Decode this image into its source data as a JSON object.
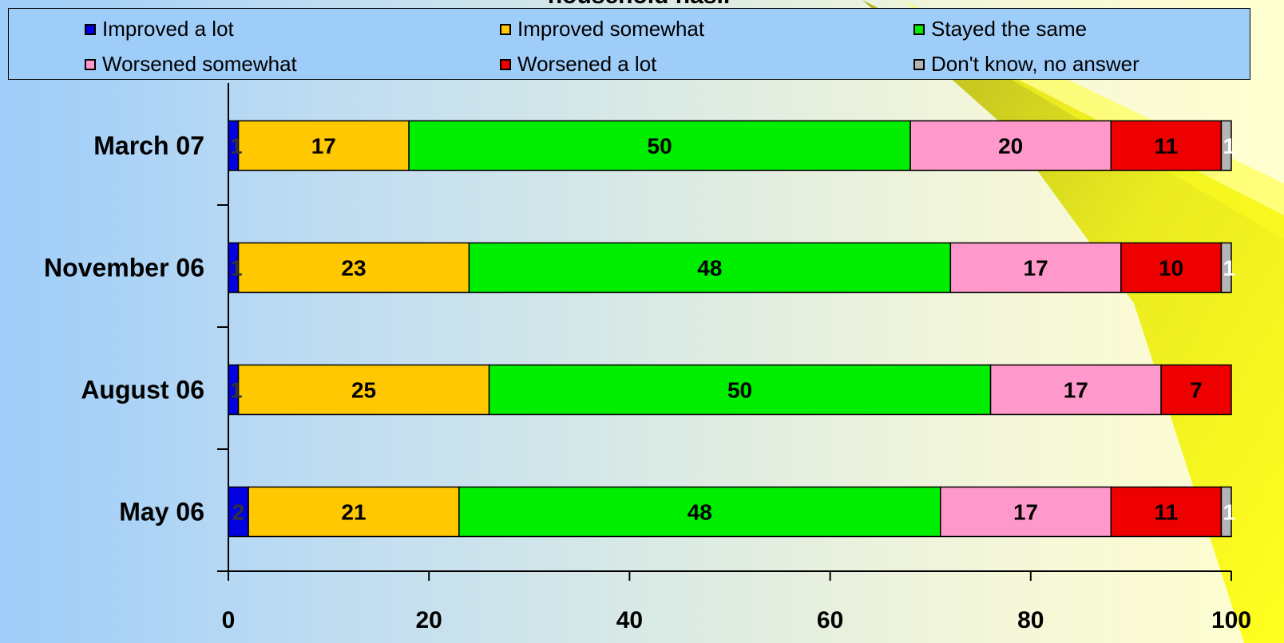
{
  "chart_data": {
    "type": "bar",
    "orientation": "horizontal",
    "stacked": true,
    "title": "household has..",
    "categories": [
      "March 07",
      "November 06",
      "August 06",
      "May 06"
    ],
    "series": [
      {
        "name": "Improved a lot",
        "color": "#0000e0",
        "values": [
          1,
          1,
          1,
          2
        ]
      },
      {
        "name": "Improved somewhat",
        "color": "#ffc800",
        "values": [
          17,
          23,
          25,
          21
        ]
      },
      {
        "name": "Stayed the same",
        "color": "#00ee00",
        "values": [
          50,
          48,
          50,
          48
        ]
      },
      {
        "name": "Worsened somewhat",
        "color": "#ff99cc",
        "values": [
          20,
          17,
          17,
          17
        ]
      },
      {
        "name": "Worsened a lot",
        "color": "#ee0000",
        "values": [
          11,
          10,
          7,
          11
        ]
      },
      {
        "name": "Don't know, no answer",
        "color": "#b4b4b4",
        "values": [
          1,
          1,
          null,
          1
        ]
      }
    ],
    "xlim": [
      0,
      100
    ],
    "x_ticks": [
      "0",
      "20",
      "40",
      "60",
      "80",
      "100"
    ],
    "legend_position": "top",
    "grid": false
  }
}
